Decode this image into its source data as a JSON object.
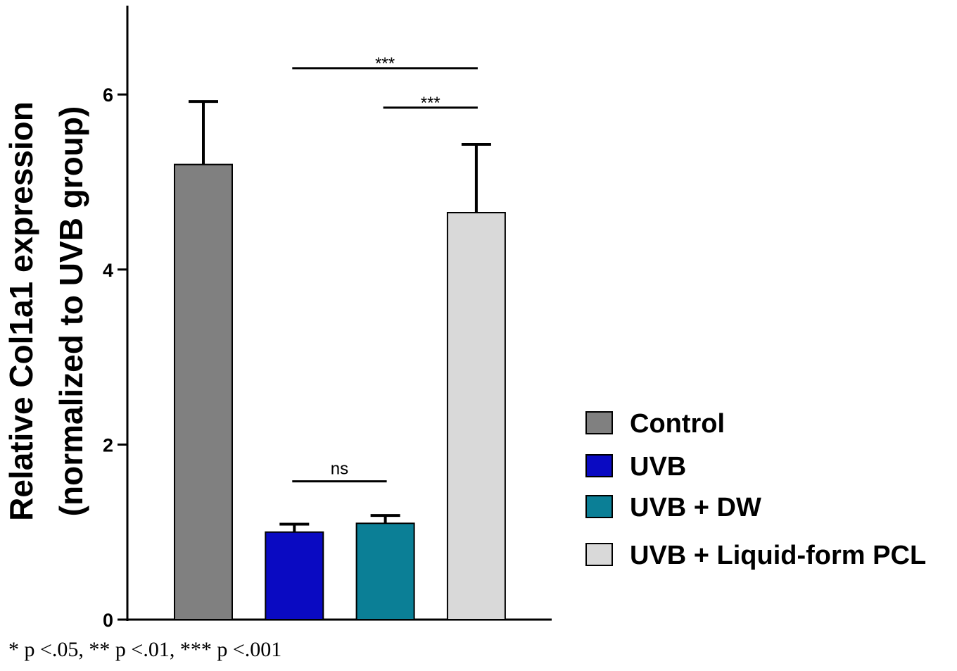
{
  "chart_data": {
    "type": "bar",
    "ylabel_line1": "Relative Col1a1 expression",
    "ylabel_line2": "(normalized to UVB group)",
    "xlabel": "",
    "ylim": [
      0,
      7
    ],
    "yticks": [
      0,
      2,
      4,
      6
    ],
    "categories": [
      "Control",
      "UVB",
      "UVB + DW",
      "UVB + Liquid-form PCL"
    ],
    "values": [
      5.2,
      1.0,
      1.1,
      4.65
    ],
    "errors": [
      0.72,
      0.09,
      0.09,
      0.78
    ],
    "colors": [
      "#808080",
      "#0a0ac2",
      "#0b7f96",
      "#d9d9d9"
    ],
    "significance": [
      {
        "from": 1,
        "to": 3,
        "y": 6.3,
        "label": "***"
      },
      {
        "from": 2,
        "to": 3,
        "y": 5.85,
        "label": "***"
      },
      {
        "from": 1,
        "to": 2,
        "y": 1.58,
        "label": "ns"
      }
    ],
    "legend_position": "right",
    "footnote": "* p <.05, ** p <.01, *** p <.001"
  }
}
